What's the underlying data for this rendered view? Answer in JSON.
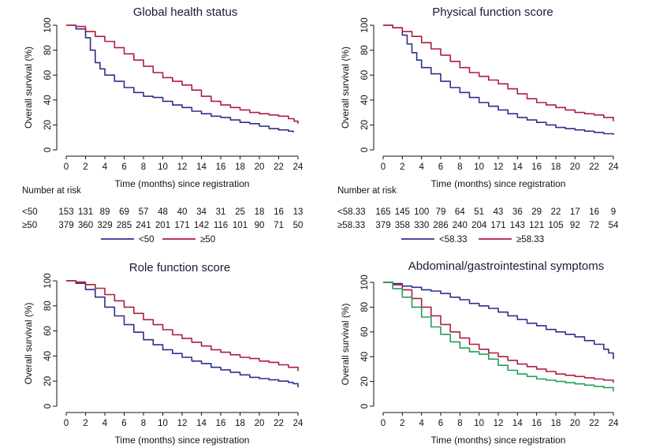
{
  "colors": {
    "blue": "#2e2e8c",
    "red": "#b01c3c",
    "green": "#1fa055"
  },
  "chart_data": [
    {
      "type": "line",
      "title": "Global health status",
      "xlabel": "Time (months) since registration",
      "ylabel": "Overall survival (%)",
      "xticks": [
        0,
        2,
        4,
        6,
        8,
        10,
        12,
        14,
        16,
        18,
        20,
        22,
        24
      ],
      "yticks": [
        0,
        20,
        40,
        60,
        80,
        100
      ],
      "xlim": [
        0,
        24
      ],
      "ylim": [
        0,
        100
      ],
      "series": [
        {
          "name": "<50",
          "color": "#2e2e8c",
          "x": [
            0,
            1,
            2,
            2.5,
            3,
            3.5,
            4,
            5,
            6,
            7,
            8,
            9,
            10,
            11,
            12,
            13,
            14,
            15,
            16,
            17,
            18,
            19,
            20,
            21,
            22,
            23,
            23.5
          ],
          "y": [
            100,
            97,
            90,
            80,
            70,
            65,
            60,
            55,
            50,
            46,
            43,
            42,
            39,
            36,
            34,
            31,
            29,
            27,
            26,
            24,
            22,
            21,
            19,
            17,
            16,
            15,
            14
          ]
        },
        {
          "name": "≥50",
          "color": "#b01c3c",
          "x": [
            0,
            1,
            2,
            3,
            4,
            5,
            6,
            7,
            8,
            9,
            10,
            11,
            12,
            13,
            14,
            15,
            16,
            17,
            18,
            19,
            20,
            21,
            22,
            23,
            23.6,
            24
          ],
          "y": [
            100,
            99,
            95,
            91,
            87,
            82,
            77,
            72,
            67,
            62,
            58,
            55,
            52,
            48,
            43,
            39,
            36,
            34,
            32,
            30,
            29,
            28,
            27,
            25,
            23,
            21
          ]
        }
      ],
      "risk_table": {
        "label": "Number at risk",
        "rows": [
          {
            "label": "<50",
            "values": [
              "153",
              "131",
              "89",
              "69",
              "57",
              "48",
              "40",
              "34",
              "31",
              "25",
              "18",
              "16",
              "13"
            ]
          },
          {
            "label": "≥50",
            "values": [
              "379",
              "360",
              "329",
              "285",
              "241",
              "201",
              "171",
              "142",
              "116",
              "101",
              "90",
              "71",
              "50"
            ]
          }
        ]
      },
      "legend": {
        "placement": "bottom",
        "items": [
          {
            "label": "<50",
            "color": "#2e2e8c"
          },
          {
            "label": "≥50",
            "color": "#b01c3c"
          }
        ]
      }
    },
    {
      "type": "line",
      "title": "Physical function score",
      "xlabel": "Time (months) since registration",
      "ylabel": "Overall survival (%)",
      "xticks": [
        0,
        2,
        4,
        6,
        8,
        10,
        12,
        14,
        16,
        18,
        20,
        22,
        24
      ],
      "yticks": [
        0,
        20,
        40,
        60,
        80,
        100
      ],
      "xlim": [
        0,
        24
      ],
      "ylim": [
        0,
        100
      ],
      "series": [
        {
          "name": "<58.33",
          "color": "#2e2e8c",
          "x": [
            0,
            1,
            2,
            2.5,
            3,
            3.5,
            4,
            5,
            6,
            7,
            8,
            9,
            10,
            11,
            12,
            13,
            14,
            15,
            16,
            17,
            18,
            19,
            20,
            21,
            22,
            23,
            24
          ],
          "y": [
            100,
            98,
            92,
            85,
            78,
            72,
            66,
            61,
            55,
            50,
            46,
            42,
            38,
            35,
            32,
            29,
            26,
            24,
            22,
            20,
            18,
            17,
            16,
            15,
            14,
            13,
            12
          ]
        },
        {
          "name": "≥58.33",
          "color": "#b01c3c",
          "x": [
            0,
            1,
            2,
            3,
            4,
            5,
            6,
            7,
            8,
            9,
            10,
            11,
            12,
            13,
            14,
            15,
            16,
            17,
            18,
            19,
            20,
            21,
            22,
            23,
            24
          ],
          "y": [
            100,
            98,
            95,
            91,
            86,
            81,
            76,
            71,
            66,
            62,
            59,
            56,
            53,
            49,
            45,
            41,
            38,
            36,
            34,
            32,
            30,
            29,
            28,
            26,
            23
          ]
        }
      ],
      "risk_table": {
        "label": "Number at risk",
        "rows": [
          {
            "label": "<58.33",
            "values": [
              "165",
              "145",
              "100",
              "79",
              "64",
              "51",
              "43",
              "36",
              "29",
              "22",
              "17",
              "16",
              "9"
            ]
          },
          {
            "label": "≥58.33",
            "values": [
              "379",
              "358",
              "330",
              "286",
              "240",
              "204",
              "171",
              "143",
              "121",
              "105",
              "92",
              "72",
              "54"
            ]
          }
        ]
      },
      "legend": {
        "placement": "bottom",
        "items": [
          {
            "label": "<58.33",
            "color": "#2e2e8c"
          },
          {
            "label": "≥58.33",
            "color": "#b01c3c"
          }
        ]
      }
    },
    {
      "type": "line",
      "title": "Role function score",
      "xlabel": "Time (months) since registration",
      "ylabel": "Overall survival (%)",
      "xticks": [
        0,
        2,
        4,
        6,
        8,
        10,
        12,
        14,
        16,
        18,
        20,
        22,
        24
      ],
      "yticks": [
        0,
        20,
        40,
        60,
        80,
        100
      ],
      "xlim": [
        0,
        24
      ],
      "ylim": [
        0,
        100
      ],
      "series": [
        {
          "color": "#2e2e8c",
          "x": [
            0,
            1,
            2,
            3,
            4,
            5,
            6,
            7,
            8,
            9,
            10,
            11,
            12,
            13,
            14,
            15,
            16,
            17,
            18,
            19,
            20,
            21,
            22,
            23,
            23.5,
            24
          ],
          "y": [
            100,
            98,
            93,
            87,
            79,
            72,
            65,
            59,
            53,
            49,
            45,
            42,
            39,
            36,
            34,
            31,
            29,
            27,
            25,
            23,
            22,
            21,
            20,
            19,
            18,
            15
          ]
        },
        {
          "color": "#b01c3c",
          "x": [
            0,
            1,
            2,
            3,
            4,
            5,
            6,
            7,
            8,
            9,
            10,
            11,
            12,
            13,
            14,
            15,
            16,
            17,
            18,
            19,
            20,
            21,
            22,
            23,
            24
          ],
          "y": [
            100,
            99,
            97,
            94,
            89,
            84,
            79,
            74,
            69,
            65,
            61,
            57,
            54,
            51,
            48,
            45,
            43,
            41,
            39,
            38,
            36,
            35,
            33,
            31,
            28
          ]
        }
      ]
    },
    {
      "type": "line",
      "title": "Abdominal/gastrointestinal symptoms",
      "xlabel": "Time (months) since registration",
      "ylabel": "Overall survival (%)",
      "xticks": [
        0,
        2,
        4,
        6,
        8,
        10,
        12,
        14,
        16,
        18,
        20,
        22,
        24
      ],
      "yticks": [
        0,
        20,
        40,
        60,
        80,
        100
      ],
      "xlim": [
        0,
        24
      ],
      "ylim": [
        0,
        100
      ],
      "series": [
        {
          "color": "#2e2e8c",
          "x": [
            0,
            1,
            2,
            3,
            4,
            5,
            6,
            7,
            8,
            9,
            10,
            11,
            12,
            13,
            14,
            15,
            16,
            17,
            18,
            19,
            20,
            21,
            22,
            23,
            23.5,
            24
          ],
          "y": [
            100,
            99,
            97,
            96,
            94,
            93,
            91,
            88,
            86,
            83,
            81,
            79,
            76,
            73,
            70,
            67,
            65,
            62,
            60,
            58,
            56,
            53,
            50,
            46,
            43,
            38
          ]
        },
        {
          "color": "#b01c3c",
          "x": [
            0,
            1,
            2,
            3,
            4,
            5,
            6,
            7,
            8,
            9,
            10,
            11,
            12,
            13,
            14,
            15,
            16,
            17,
            18,
            19,
            20,
            21,
            22,
            23,
            24
          ],
          "y": [
            100,
            98,
            94,
            87,
            80,
            73,
            66,
            60,
            55,
            50,
            46,
            43,
            40,
            37,
            34,
            32,
            30,
            28,
            26,
            25,
            24,
            23,
            22,
            21,
            19
          ]
        },
        {
          "color": "#1fa055",
          "x": [
            0,
            1,
            2,
            3,
            4,
            5,
            6,
            7,
            8,
            9,
            10,
            11,
            12,
            13,
            14,
            15,
            16,
            17,
            18,
            19,
            20,
            21,
            22,
            23,
            24
          ],
          "y": [
            100,
            95,
            88,
            80,
            72,
            64,
            58,
            52,
            47,
            44,
            42,
            38,
            33,
            29,
            26,
            24,
            22,
            21,
            20,
            19,
            18,
            17,
            16,
            15,
            12
          ]
        }
      ]
    }
  ]
}
